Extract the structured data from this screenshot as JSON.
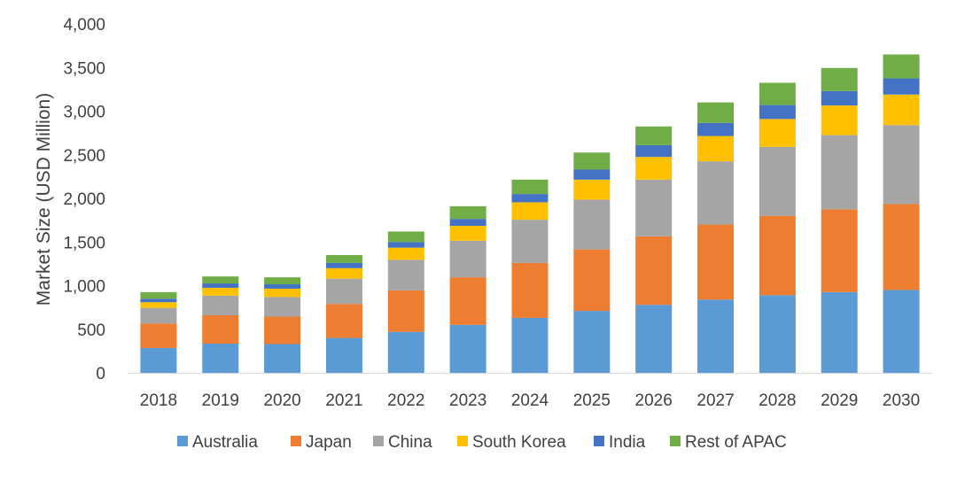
{
  "chart_data": {
    "type": "bar",
    "stacked": true,
    "title": "",
    "xlabel": "",
    "ylabel": "Market Size (USD Million)",
    "ylim": [
      0,
      4000
    ],
    "yticks": [
      "0",
      "500",
      "1,000",
      "1,500",
      "2,000",
      "2,500",
      "3,000",
      "3,500",
      "4,000"
    ],
    "ytick_values": [
      0,
      500,
      1000,
      1500,
      2000,
      2500,
      3000,
      3500,
      4000
    ],
    "grid": false,
    "legend_position": "bottom",
    "categories": [
      "2018",
      "2019",
      "2020",
      "2021",
      "2022",
      "2023",
      "2024",
      "2025",
      "2026",
      "2027",
      "2028",
      "2029",
      "2030"
    ],
    "series": [
      {
        "name": "Australia",
        "color": "#5b9bd5",
        "values": [
          285,
          335,
          330,
          400,
          470,
          550,
          630,
          710,
          780,
          840,
          890,
          925,
          950
        ]
      },
      {
        "name": "Japan",
        "color": "#ed7d31",
        "values": [
          280,
          325,
          315,
          390,
          475,
          545,
          630,
          705,
          785,
          860,
          910,
          950,
          985
        ]
      },
      {
        "name": "China",
        "color": "#a5a5a5",
        "values": [
          180,
          225,
          225,
          290,
          350,
          420,
          495,
          570,
          650,
          725,
          790,
          850,
          905
        ]
      },
      {
        "name": "South Korea",
        "color": "#ffc000",
        "values": [
          65,
          90,
          95,
          120,
          140,
          170,
          200,
          230,
          260,
          290,
          320,
          340,
          350
        ]
      },
      {
        "name": "India",
        "color": "#4472c4",
        "values": [
          40,
          50,
          50,
          60,
          65,
          80,
          95,
          115,
          135,
          150,
          160,
          165,
          185
        ]
      },
      {
        "name": "Rest of APAC",
        "color": "#70ad47",
        "values": [
          75,
          80,
          80,
          90,
          120,
          145,
          165,
          195,
          215,
          235,
          255,
          265,
          275
        ]
      }
    ]
  }
}
